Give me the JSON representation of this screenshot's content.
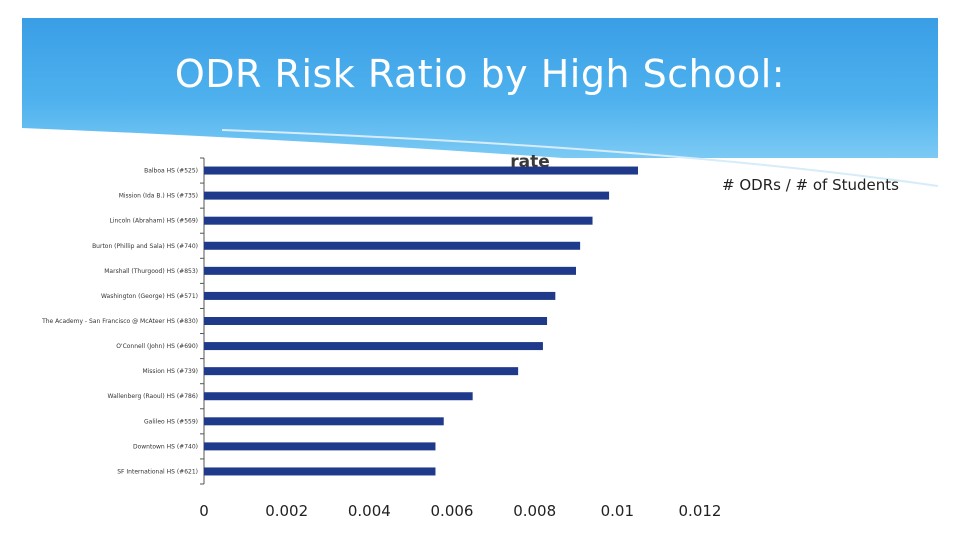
{
  "slide": {
    "title": "ODR Risk Ratio by High School:"
  },
  "chart_data": {
    "type": "bar",
    "orientation": "horizontal",
    "title": "rate",
    "note": "# ODRs / # of Students",
    "categories": [
      "Balboa HS (#525)",
      "Mission (Ida B.) HS (#735)",
      "Lincoln (Abraham) HS (#569)",
      "Burton (Phillip and Sala) HS (#740)",
      "Marshall (Thurgood) HS (#853)",
      "Washington (George) HS (#571)",
      "The Academy - San Francisco @ McAteer HS (#830)",
      "O'Connell (John) HS (#690)",
      "Mission HS (#739)",
      "Wallenberg (Raoul) HS (#786)",
      "Galileo HS (#559)",
      "Downtown HS (#740)",
      "SF International HS (#621)"
    ],
    "values": [
      0.0105,
      0.0098,
      0.0094,
      0.0091,
      0.009,
      0.0085,
      0.0083,
      0.0082,
      0.0076,
      0.0065,
      0.0058,
      0.0056,
      0.0056
    ],
    "xticks": [
      "0",
      "0.002",
      "0.004",
      "0.006",
      "0.008",
      "0.01",
      "0.012"
    ],
    "xlim": [
      0,
      0.012
    ],
    "bar_color": "#1f3a8a"
  }
}
